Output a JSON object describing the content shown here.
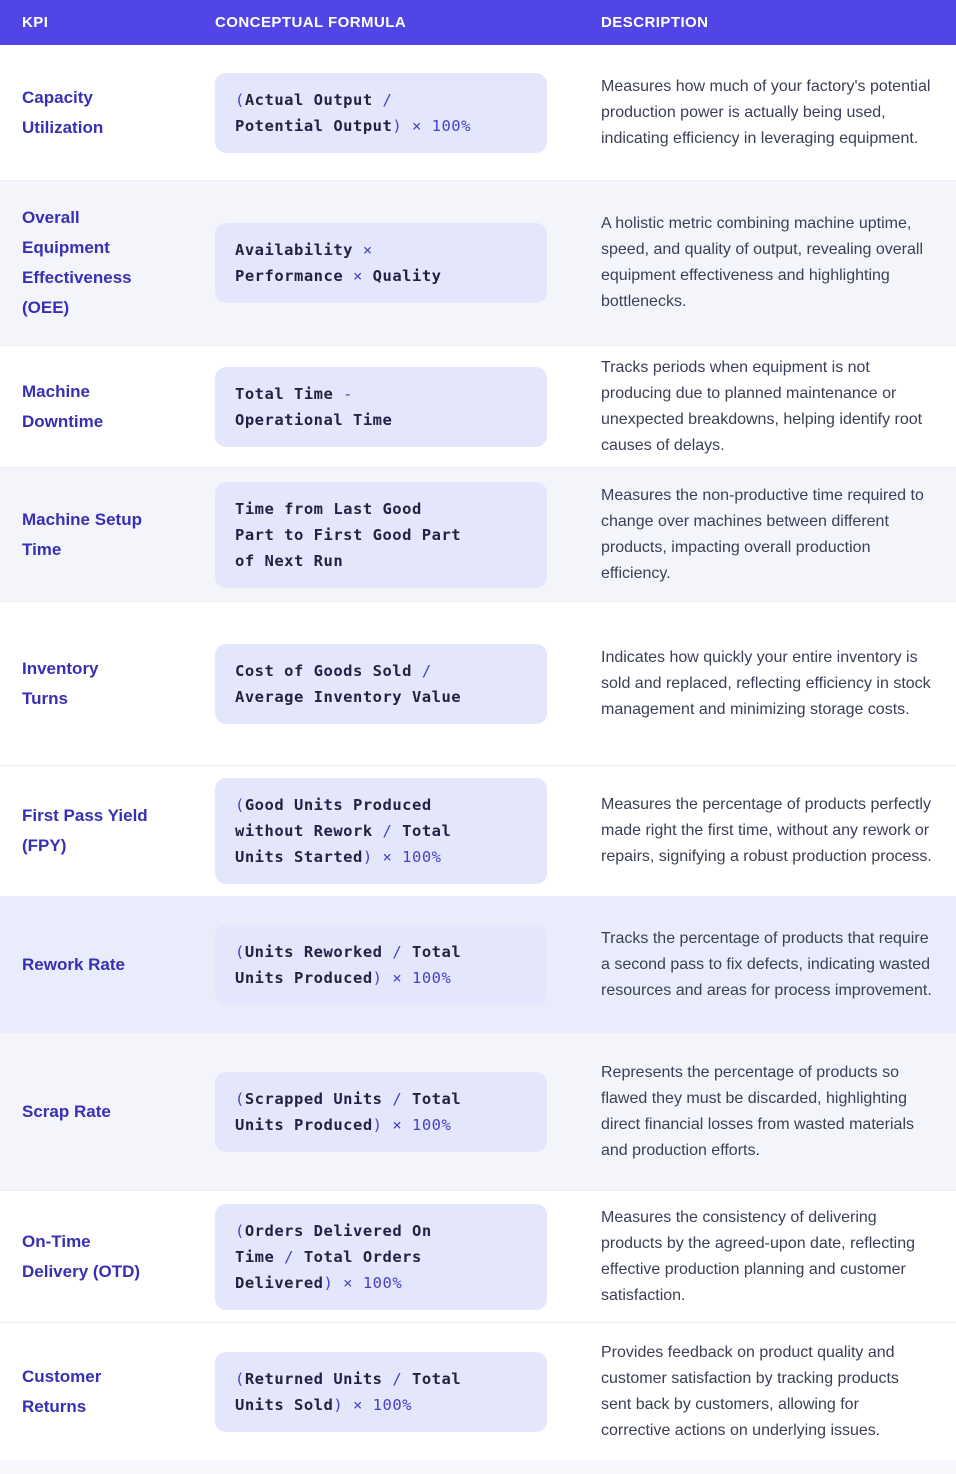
{
  "palette": {
    "header_bg": "#4f46e5",
    "header_text": "#ffffff",
    "kpi_text": "#3730b3",
    "desc_text": "#3a3f55",
    "formula_box_bg": "#e4e7fb",
    "formula_name": "#242145",
    "formula_op": "#4840c9",
    "row_white": "#ffffff",
    "tint_light": "#f4f5fb",
    "tint_accent": "#e9ecfa",
    "divider": "#ebecf4",
    "footer_bg": "#f7f8fd"
  },
  "header": {
    "kpi": "KPI",
    "formula": "CONCEPTUAL FORMULA",
    "description": "DESCRIPTION"
  },
  "rows": [
    {
      "kpi": "Capacity Utilization",
      "kpi_lines": [
        "Capacity",
        "Utilization"
      ],
      "tint": "none",
      "formula_lines": [
        [
          {
            "text": "(",
            "style": "op"
          },
          {
            "text": "Actual Output",
            "style": "name"
          },
          {
            "text": " /",
            "style": "op"
          }
        ],
        [
          {
            "text": "Potential Output",
            "style": "name"
          },
          {
            "text": ") × 100%",
            "style": "op"
          }
        ]
      ],
      "description": "Measures how much of your factory's potential production power is actually being used, indicating efficiency in leveraging equipment."
    },
    {
      "kpi": "Overall Equipment Effectiveness (OEE)",
      "kpi_lines": [
        "Overall",
        "Equipment",
        "Effectiveness",
        "(OEE)"
      ],
      "tint": "light",
      "formula_lines": [
        [
          {
            "text": "Availability",
            "style": "name"
          },
          {
            "text": " ×",
            "style": "op"
          }
        ],
        [
          {
            "text": "Performance",
            "style": "name"
          },
          {
            "text": " × ",
            "style": "op"
          },
          {
            "text": "Quality",
            "style": "name"
          }
        ]
      ],
      "description": "A holistic metric combining machine uptime, speed, and quality of output, revealing overall equipment effectiveness and highlighting bottlenecks."
    },
    {
      "kpi": "Machine Downtime",
      "kpi_lines": [
        "Machine",
        "Downtime"
      ],
      "tint": "none",
      "formula_lines": [
        [
          {
            "text": "Total Time",
            "style": "name"
          },
          {
            "text": " -",
            "style": "op"
          }
        ],
        [
          {
            "text": "Operational Time",
            "style": "name"
          }
        ]
      ],
      "description": "Tracks periods when equipment is not producing due to planned maintenance or unexpected breakdowns, helping identify root causes of delays."
    },
    {
      "kpi": "Machine Setup Time",
      "kpi_lines": [
        "Machine Setup",
        "Time"
      ],
      "tint": "light",
      "formula_lines": [
        [
          {
            "text": "Time from Last Good",
            "style": "name"
          }
        ],
        [
          {
            "text": "Part to First Good Part",
            "style": "name"
          }
        ],
        [
          {
            "text": "of Next Run",
            "style": "name"
          }
        ]
      ],
      "description": "Measures the non-productive time required to change over machines between different products, impacting overall production efficiency."
    },
    {
      "kpi": "Inventory Turns",
      "kpi_lines": [
        "Inventory",
        "Turns"
      ],
      "tint": "none",
      "formula_lines": [
        [
          {
            "text": "Cost of Goods Sold",
            "style": "name"
          },
          {
            "text": " /",
            "style": "op"
          }
        ],
        [
          {
            "text": "Average Inventory Value",
            "style": "name"
          }
        ]
      ],
      "description": "Indicates how quickly your entire inventory is sold and replaced, reflecting efficiency in stock management and minimizing storage costs."
    },
    {
      "kpi": "First Pass Yield (FPY)",
      "kpi_lines": [
        "First Pass Yield",
        "(FPY)"
      ],
      "tint": "none",
      "formula_lines": [
        [
          {
            "text": "(",
            "style": "op"
          },
          {
            "text": "Good Units Produced",
            "style": "name"
          }
        ],
        [
          {
            "text": "without Rework",
            "style": "name"
          },
          {
            "text": " / ",
            "style": "op"
          },
          {
            "text": "Total",
            "style": "name"
          }
        ],
        [
          {
            "text": "Units Started",
            "style": "name"
          },
          {
            "text": ") × 100%",
            "style": "op"
          }
        ]
      ],
      "description": "Measures the percentage of products perfectly made right the first time, without any rework or repairs, signifying a robust production process."
    },
    {
      "kpi": "Rework Rate",
      "kpi_lines": [
        "Rework Rate"
      ],
      "tint": "accent",
      "formula_lines": [
        [
          {
            "text": "(",
            "style": "op"
          },
          {
            "text": "Units Reworked",
            "style": "name"
          },
          {
            "text": " / ",
            "style": "op"
          },
          {
            "text": "Total",
            "style": "name"
          }
        ],
        [
          {
            "text": "Units Produced",
            "style": "name"
          },
          {
            "text": ") × 100%",
            "style": "op"
          }
        ]
      ],
      "description": "Tracks the percentage of products that require a second pass to fix defects, indicating wasted resources and areas for process improvement."
    },
    {
      "kpi": "Scrap Rate",
      "kpi_lines": [
        "Scrap Rate"
      ],
      "tint": "light",
      "formula_lines": [
        [
          {
            "text": "(",
            "style": "op"
          },
          {
            "text": "Scrapped Units",
            "style": "name"
          },
          {
            "text": " / ",
            "style": "op"
          },
          {
            "text": "Total",
            "style": "name"
          }
        ],
        [
          {
            "text": "Units Produced",
            "style": "name"
          },
          {
            "text": ") × 100%",
            "style": "op"
          }
        ]
      ],
      "description": "Represents the percentage of products so flawed they must be discarded, highlighting direct financial losses from wasted materials and production efforts."
    },
    {
      "kpi": "On-Time Delivery (OTD)",
      "kpi_lines": [
        "On-Time",
        "Delivery (OTD)"
      ],
      "tint": "none",
      "formula_lines": [
        [
          {
            "text": "(",
            "style": "op"
          },
          {
            "text": "Orders Delivered On",
            "style": "name"
          }
        ],
        [
          {
            "text": "Time",
            "style": "name"
          },
          {
            "text": " / ",
            "style": "op"
          },
          {
            "text": "Total Orders",
            "style": "name"
          }
        ],
        [
          {
            "text": "Delivered",
            "style": "name"
          },
          {
            "text": ") × 100%",
            "style": "op"
          }
        ]
      ],
      "description": "Measures the consistency of delivering products by the agreed-upon date, reflecting effective production planning and customer satisfaction."
    },
    {
      "kpi": "Customer Returns",
      "kpi_lines": [
        "Customer",
        "Returns"
      ],
      "tint": "none",
      "formula_lines": [
        [
          {
            "text": "(",
            "style": "op"
          },
          {
            "text": "Returned Units",
            "style": "name"
          },
          {
            "text": " / ",
            "style": "op"
          },
          {
            "text": "Total",
            "style": "name"
          }
        ],
        [
          {
            "text": "Units Sold",
            "style": "name"
          },
          {
            "text": ") × 100%",
            "style": "op"
          }
        ]
      ],
      "description": "Provides feedback on product quality and customer satisfaction by tracking products sent back by customers, allowing for corrective actions on underlying issues."
    }
  ]
}
